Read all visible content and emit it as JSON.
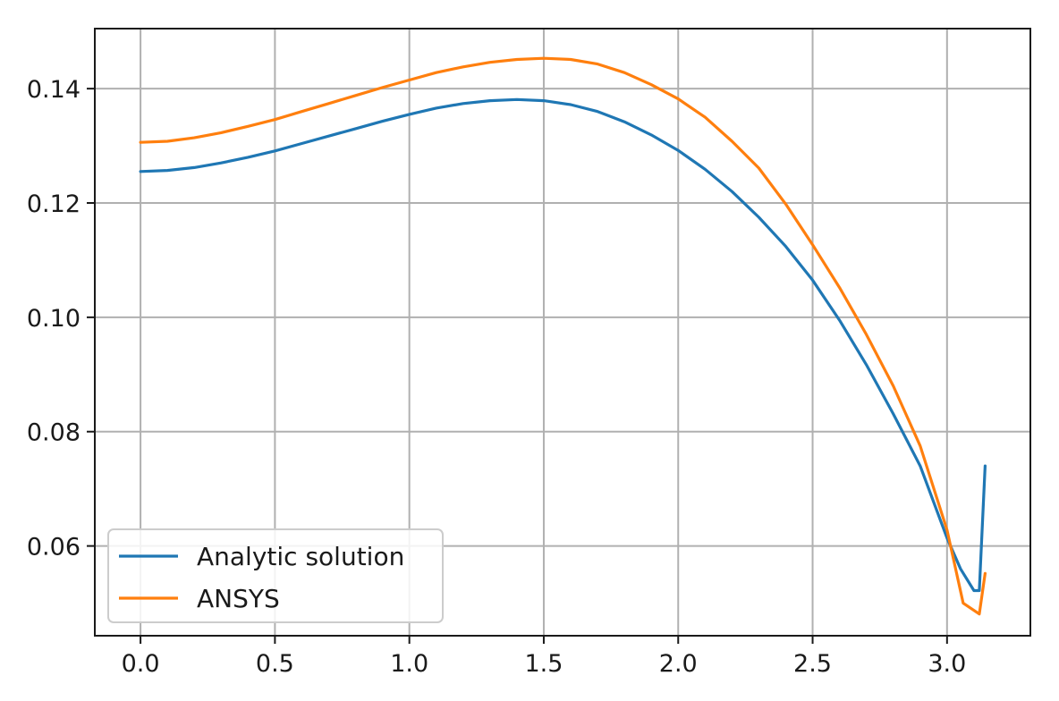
{
  "chart_data": {
    "type": "line",
    "title": "",
    "xlabel": "",
    "ylabel": "",
    "xlim": [
      -0.17,
      3.31
    ],
    "ylim": [
      0.0443,
      0.1505
    ],
    "xticks": [
      0.0,
      0.5,
      1.0,
      1.5,
      2.0,
      2.5,
      3.0
    ],
    "xtick_labels": [
      "0.0",
      "0.5",
      "1.0",
      "1.5",
      "2.0",
      "2.5",
      "3.0"
    ],
    "yticks": [
      0.06,
      0.08,
      0.1,
      0.12,
      0.14
    ],
    "ytick_labels": [
      "0.06",
      "0.08",
      "0.10",
      "0.12",
      "0.14"
    ],
    "grid": true,
    "legend": {
      "position": "lower-left"
    },
    "series": [
      {
        "name": "Analytic solution",
        "color": "#1f77b4",
        "x": [
          0.0,
          0.1,
          0.2,
          0.3,
          0.4,
          0.5,
          0.6,
          0.7,
          0.8,
          0.9,
          1.0,
          1.1,
          1.2,
          1.3,
          1.4,
          1.5,
          1.6,
          1.7,
          1.8,
          1.9,
          2.0,
          2.1,
          2.2,
          2.3,
          2.4,
          2.5,
          2.6,
          2.7,
          2.8,
          2.9,
          3.0,
          3.05,
          3.1,
          3.12,
          3.1416
        ],
        "y": [
          0.1255,
          0.1257,
          0.1262,
          0.127,
          0.128,
          0.1291,
          0.1304,
          0.1317,
          0.133,
          0.1343,
          0.1355,
          0.1366,
          0.1374,
          0.1379,
          0.1381,
          0.1379,
          0.1372,
          0.136,
          0.1342,
          0.1319,
          0.1292,
          0.1259,
          0.122,
          0.1175,
          0.1124,
          0.1065,
          0.0995,
          0.0917,
          0.0831,
          0.074,
          0.0614,
          0.056,
          0.0522,
          0.0522,
          0.074
        ]
      },
      {
        "name": "ANSYS",
        "color": "#ff7f0e",
        "x": [
          0.0,
          0.1,
          0.2,
          0.3,
          0.4,
          0.5,
          0.6,
          0.7,
          0.8,
          0.9,
          1.0,
          1.1,
          1.2,
          1.3,
          1.4,
          1.5,
          1.6,
          1.7,
          1.8,
          1.9,
          2.0,
          2.1,
          2.2,
          2.3,
          2.4,
          2.5,
          2.6,
          2.7,
          2.8,
          2.9,
          3.0,
          3.06,
          3.12,
          3.1416
        ],
        "y": [
          0.1306,
          0.1308,
          0.1314,
          0.1323,
          0.1334,
          0.1346,
          0.136,
          0.1374,
          0.1388,
          0.1402,
          0.1415,
          0.1428,
          0.1438,
          0.1446,
          0.1451,
          0.1453,
          0.1451,
          0.1443,
          0.1428,
          0.1407,
          0.1382,
          0.135,
          0.1308,
          0.1261,
          0.1198,
          0.1127,
          0.1052,
          0.097,
          0.088,
          0.0775,
          0.0628,
          0.05,
          0.0481,
          0.0552
        ]
      }
    ]
  }
}
